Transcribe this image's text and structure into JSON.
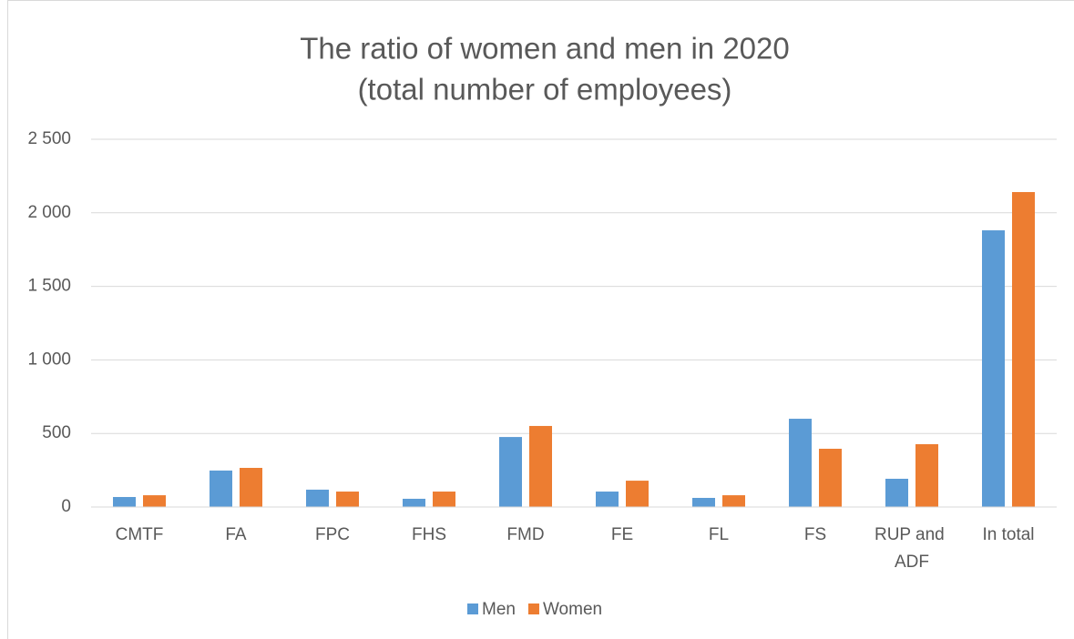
{
  "chart_data": {
    "type": "bar",
    "title": "The ratio of women and men in 2020",
    "subtitle": "(total number of employees)",
    "categories": [
      "CMTF",
      "FA",
      "FPC",
      "FHS",
      "FMD",
      "FE",
      "FL",
      "FS",
      "RUP and ADF",
      "In total"
    ],
    "series": [
      {
        "name": "Men",
        "color": "#5b9bd5",
        "values": [
          68,
          248,
          118,
          56,
          476,
          105,
          62,
          600,
          192,
          1881
        ]
      },
      {
        "name": "Women",
        "color": "#ed7d31",
        "values": [
          80,
          266,
          105,
          105,
          551,
          179,
          80,
          396,
          427,
          2141
        ]
      }
    ],
    "ylim": [
      0,
      2500
    ],
    "yticks": [
      0,
      500,
      {
        "value": 1000,
        "label": "1 000"
      },
      {
        "value": 1500,
        "label": "1 500"
      },
      {
        "value": 2000,
        "label": "2 000"
      },
      {
        "value": 2500,
        "label": "2 500"
      }
    ],
    "grid": true,
    "legend": "bottom"
  }
}
